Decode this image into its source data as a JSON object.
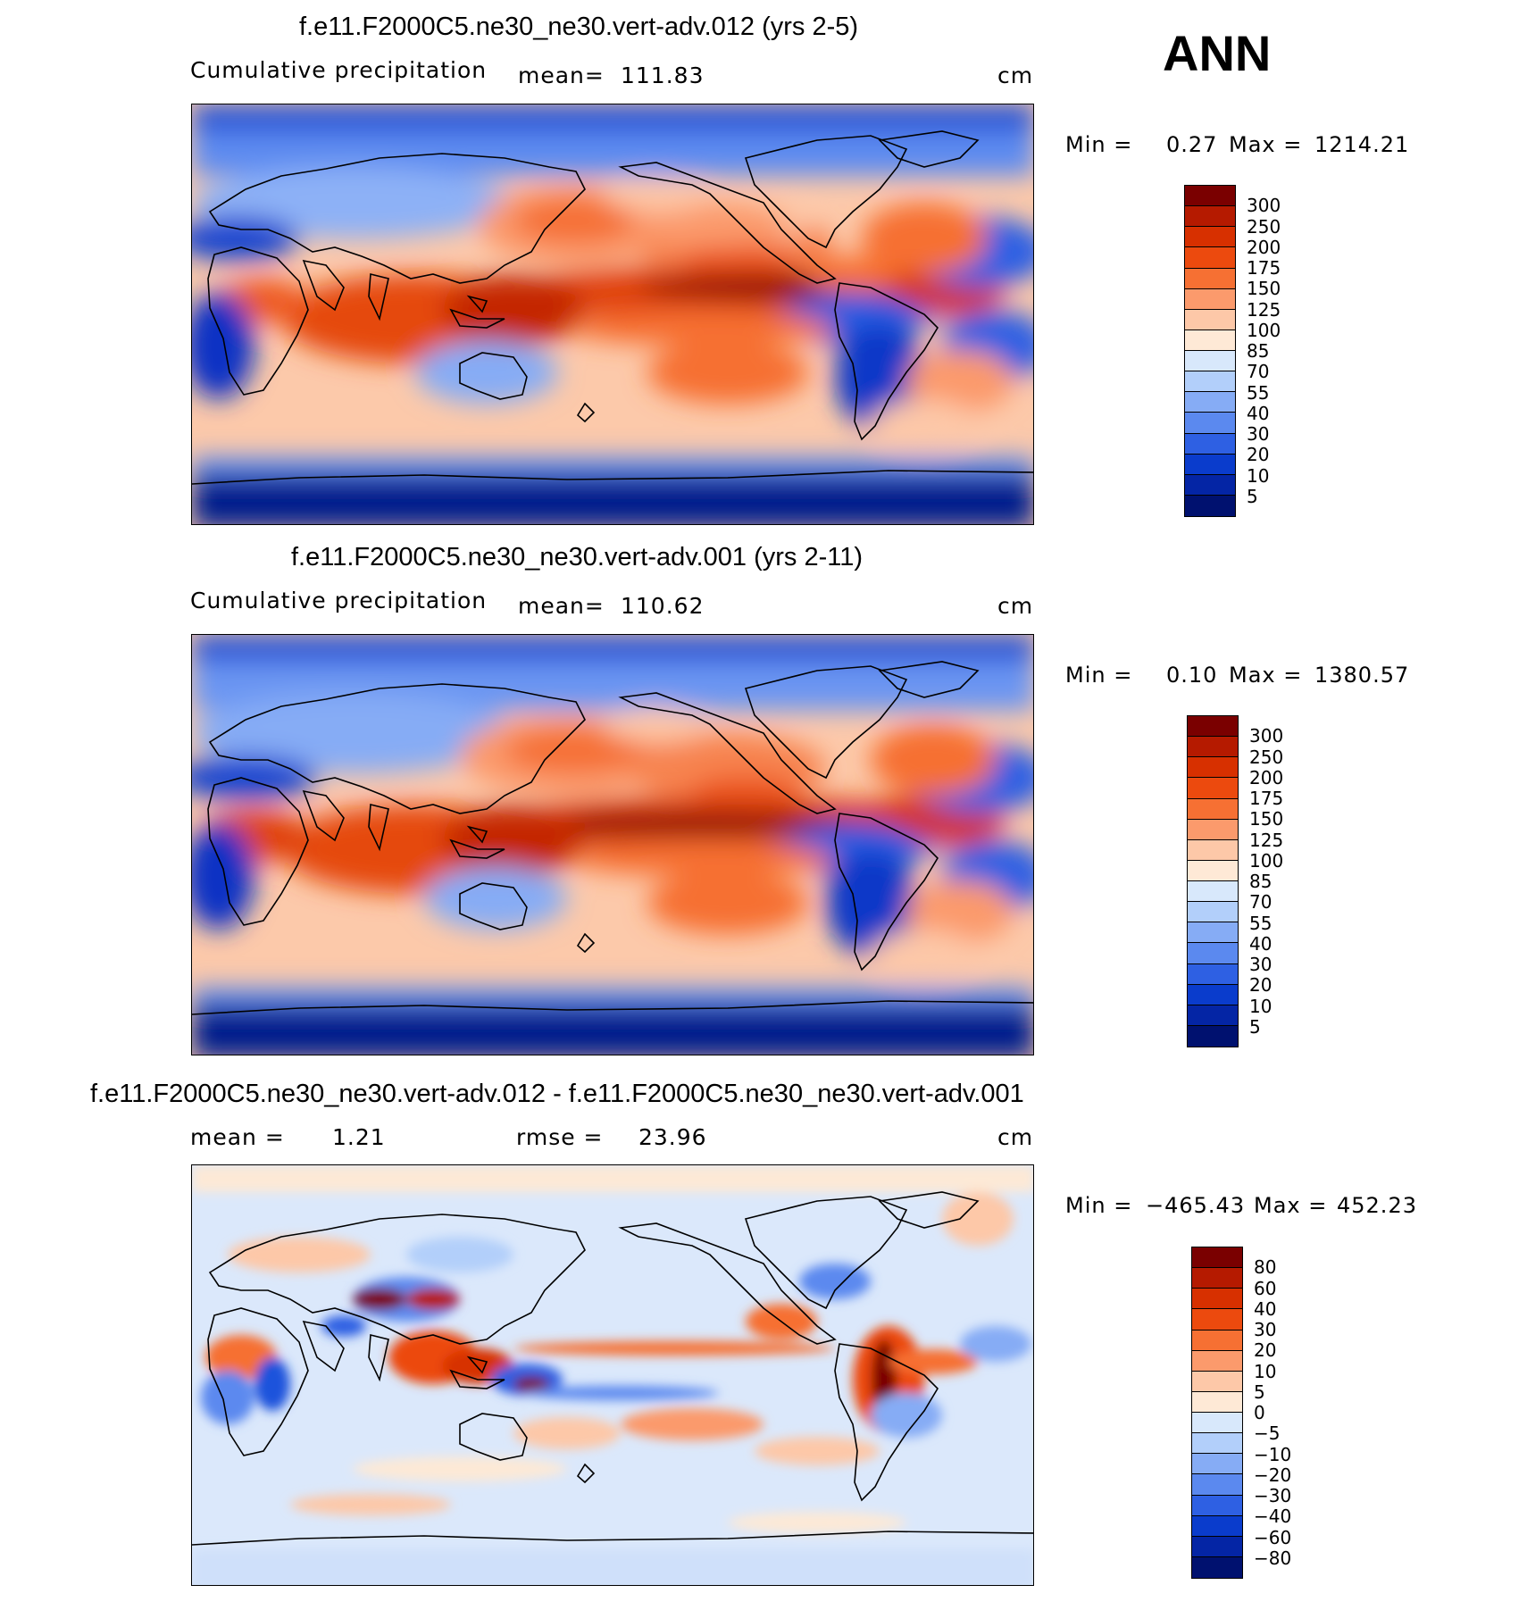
{
  "season": "ANN",
  "panels": [
    {
      "title": "f.e11.F2000C5.ne30_ne30.vert-adv.012 (yrs 2-5)",
      "variable": "Cumulative precipitation",
      "mean_label": "mean=",
      "mean_value": "111.83",
      "units": "cm",
      "min_label": "Min =",
      "min_value": "0.27",
      "max_label": "Max =",
      "max_value": "1214.21",
      "colorbar_ticks": [
        "300",
        "250",
        "200",
        "175",
        "150",
        "125",
        "100",
        "85",
        "70",
        "55",
        "40",
        "30",
        "20",
        "10",
        "5"
      ],
      "colorbar_colors": [
        "#7a0000",
        "#b51a00",
        "#d73000",
        "#ec4a0e",
        "#f67033",
        "#fb9a6c",
        "#fdc8a8",
        "#fee9d6",
        "#d8e8fb",
        "#b2cffa",
        "#86acf5",
        "#5b89ef",
        "#2e60e3",
        "#0a3ccc",
        "#0425a5",
        "#00116f"
      ]
    },
    {
      "title": "f.e11.F2000C5.ne30_ne30.vert-adv.001 (yrs 2-11)",
      "variable": "Cumulative precipitation",
      "mean_label": "mean=",
      "mean_value": "110.62",
      "units": "cm",
      "min_label": "Min =",
      "min_value": "0.10",
      "max_label": "Max =",
      "max_value": "1380.57",
      "colorbar_ticks": [
        "300",
        "250",
        "200",
        "175",
        "150",
        "125",
        "100",
        "85",
        "70",
        "55",
        "40",
        "30",
        "20",
        "10",
        "5"
      ],
      "colorbar_colors": [
        "#7a0000",
        "#b51a00",
        "#d73000",
        "#ec4a0e",
        "#f67033",
        "#fb9a6c",
        "#fdc8a8",
        "#fee9d6",
        "#d8e8fb",
        "#b2cffa",
        "#86acf5",
        "#5b89ef",
        "#2e60e3",
        "#0a3ccc",
        "#0425a5",
        "#00116f"
      ]
    },
    {
      "title": "f.e11.F2000C5.ne30_ne30.vert-adv.012 - f.e11.F2000C5.ne30_ne30.vert-adv.001",
      "mean_label": "mean =",
      "mean_value": "1.21",
      "rmse_label": "rmse =",
      "rmse_value": "23.96",
      "units": "cm",
      "min_label": "Min =",
      "min_value": "−465.43",
      "max_label": "Max =",
      "max_value": "452.23",
      "colorbar_ticks": [
        "80",
        "60",
        "40",
        "30",
        "20",
        "10",
        "5",
        "0",
        "−5",
        "−10",
        "−20",
        "−30",
        "−40",
        "−60",
        "−80"
      ],
      "colorbar_colors": [
        "#7a0000",
        "#b51a00",
        "#d73000",
        "#ec4a0e",
        "#f67033",
        "#fb9a6c",
        "#fdc8a8",
        "#fee9d6",
        "#d8e8fb",
        "#b2cffa",
        "#86acf5",
        "#5b89ef",
        "#2e60e3",
        "#0a3ccc",
        "#0425a5",
        "#00116f"
      ]
    }
  ]
}
